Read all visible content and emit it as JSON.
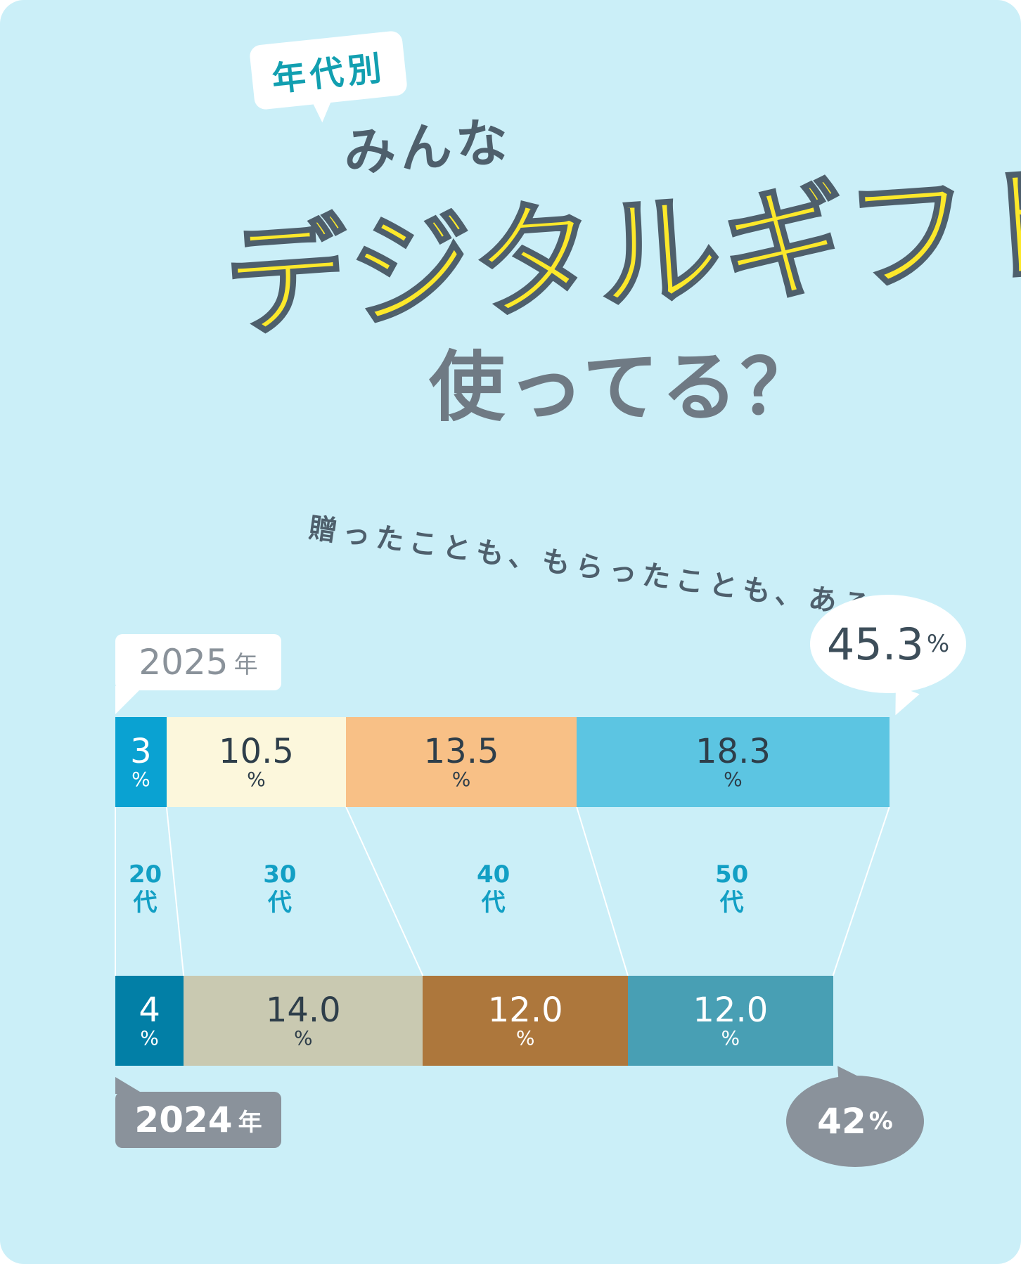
{
  "header": {
    "tag": "年代別",
    "line1": "みんな",
    "line2": "デジタルギフト",
    "line3": "使ってる？"
  },
  "subtitle": "贈ったことも、もらったことも、ある",
  "colors": {
    "background": "#cbeff8",
    "title_yellow": "#fce82a",
    "age_label": "#129fc4"
  },
  "chart_data": {
    "type": "bar",
    "orientation": "horizontal-stacked",
    "categories": [
      "20代",
      "30代",
      "40代",
      "50代"
    ],
    "unit": "%",
    "series": [
      {
        "name": "2025年",
        "values": [
          3,
          10.5,
          13.5,
          18.3
        ],
        "labels": [
          "3",
          "10.5",
          "13.5",
          "18.3"
        ],
        "total_label": "45.3",
        "colors": [
          "#0aa2d2",
          "#fcf7dc",
          "#f8c086",
          "#5cc5e2"
        ],
        "text_colors": [
          "#ffffff",
          "#2e3e4a",
          "#2e3e4a",
          "#2e3e4a"
        ]
      },
      {
        "name": "2024年",
        "values": [
          4,
          14.0,
          12.0,
          12.0
        ],
        "labels": [
          "4",
          "14.0",
          "12.0",
          "12.0"
        ],
        "total_label": "42",
        "colors": [
          "#027fa6",
          "#c9c9b1",
          "#ad773c",
          "#489fb4"
        ],
        "text_colors": [
          "#ffffff",
          "#2e3e4a",
          "#ffffff",
          "#ffffff"
        ]
      }
    ],
    "year_labels": [
      {
        "num": "2025",
        "unit": "年"
      },
      {
        "num": "2024",
        "unit": "年"
      }
    ],
    "age_labels": [
      {
        "num": "20",
        "unit": "代"
      },
      {
        "num": "30",
        "unit": "代"
      },
      {
        "num": "40",
        "unit": "代"
      },
      {
        "num": "50",
        "unit": "代"
      }
    ]
  }
}
